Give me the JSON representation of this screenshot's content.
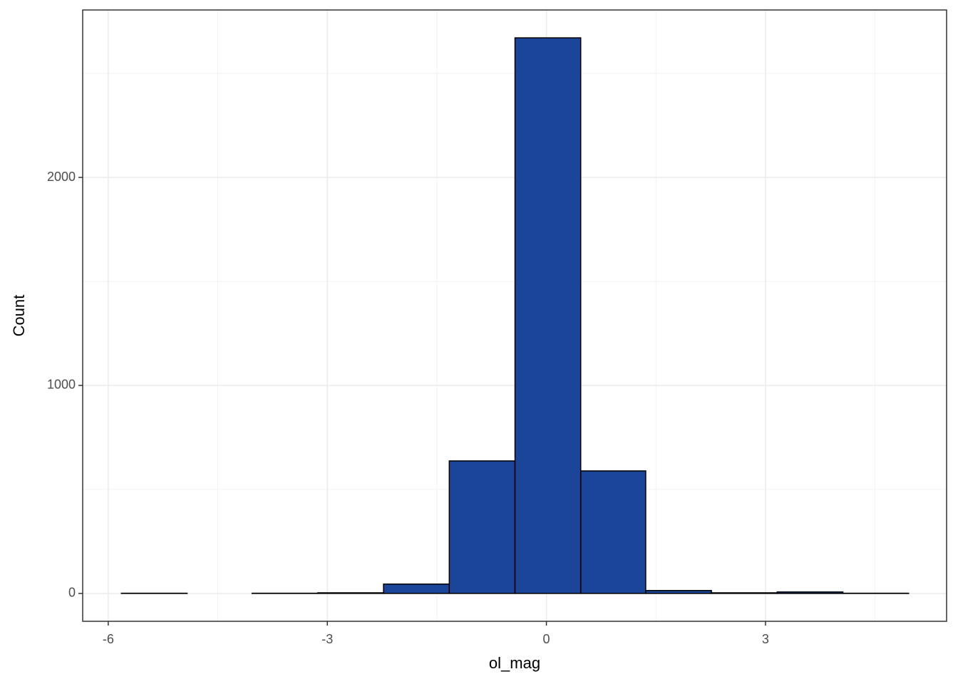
{
  "chart_data": {
    "type": "histogram",
    "x_label": "ol_mag",
    "y_label": "Count",
    "bins": [
      -5.82,
      -4.92,
      -4.03,
      -3.13,
      -2.23,
      -1.33,
      -0.43,
      0.47,
      1.36,
      2.26,
      3.16,
      4.06,
      4.96
    ],
    "counts": [
      1,
      0,
      1,
      3,
      45,
      637,
      2671,
      589,
      14,
      3,
      7,
      1
    ],
    "color": "#1a4599",
    "edge_color": "#000000",
    "xlim": [
      -6.35,
      5.48
    ],
    "xticks": [
      -6,
      -3,
      0,
      3
    ],
    "x_minor_ticks": [
      -4.5,
      -1.5,
      1.5,
      4.5
    ],
    "ylim": [
      -134,
      2805
    ],
    "yticks": [
      0,
      1000,
      2000
    ],
    "y_minor_ticks": [
      500,
      1500,
      2500
    ],
    "grid": true
  }
}
